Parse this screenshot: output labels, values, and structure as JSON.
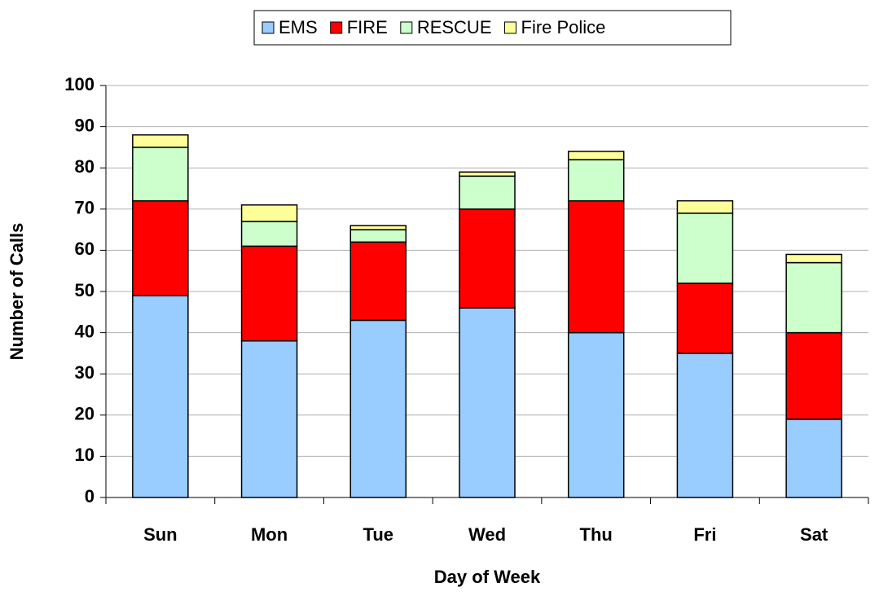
{
  "chart_data": {
    "type": "stacked_bar",
    "x_label": "Day of Week",
    "y_label": "Number of Calls",
    "categories": [
      "Sun",
      "Mon",
      "Tue",
      "Wed",
      "Thu",
      "Fri",
      "Sat"
    ],
    "series": [
      {
        "name": "EMS",
        "color": "#99ccff",
        "values": [
          49,
          38,
          43,
          46,
          40,
          35,
          19
        ]
      },
      {
        "name": "FIRE",
        "color": "#ff0000",
        "values": [
          23,
          23,
          19,
          24,
          32,
          17,
          21
        ]
      },
      {
        "name": "RESCUE",
        "color": "#ccffcc",
        "values": [
          13,
          6,
          3,
          8,
          10,
          17,
          17
        ]
      },
      {
        "name": "Fire Police",
        "color": "#ffff99",
        "values": [
          3,
          4,
          1,
          1,
          2,
          3,
          2
        ]
      }
    ],
    "ylim": [
      0,
      100
    ],
    "yticks": [
      0,
      10,
      20,
      30,
      40,
      50,
      60,
      70,
      80,
      90,
      100
    ],
    "grid": true,
    "legend": "top"
  }
}
